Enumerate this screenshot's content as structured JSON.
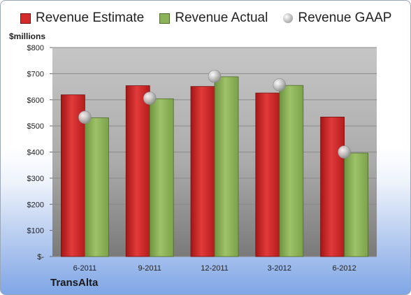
{
  "chart_data": {
    "type": "bar",
    "title": "",
    "ylabel": "$millions",
    "company": "TransAlta",
    "categories": [
      "6-2011",
      "9-2011",
      "12-2011",
      "3-2012",
      "6-2012"
    ],
    "ylim": [
      0,
      800
    ],
    "yticks": [
      0,
      100,
      200,
      300,
      400,
      500,
      600,
      700,
      800
    ],
    "ytick_labels": [
      "$-",
      "$100",
      "$200",
      "$300",
      "$400",
      "$500",
      "$600",
      "$700",
      "$800"
    ],
    "grid": true,
    "legend_position": "top",
    "series": [
      {
        "name": "Revenue Estimate",
        "kind": "bar",
        "color": "#d32b2b",
        "values": [
          619,
          654,
          651,
          626,
          534
        ]
      },
      {
        "name": "Revenue Actual",
        "kind": "bar",
        "color": "#8db35a",
        "values": [
          531,
          604,
          688,
          655,
          396
        ]
      },
      {
        "name": "Revenue GAAP",
        "kind": "marker",
        "color": "#bdbdbd",
        "values": [
          533,
          606,
          690,
          657,
          400
        ]
      }
    ]
  }
}
